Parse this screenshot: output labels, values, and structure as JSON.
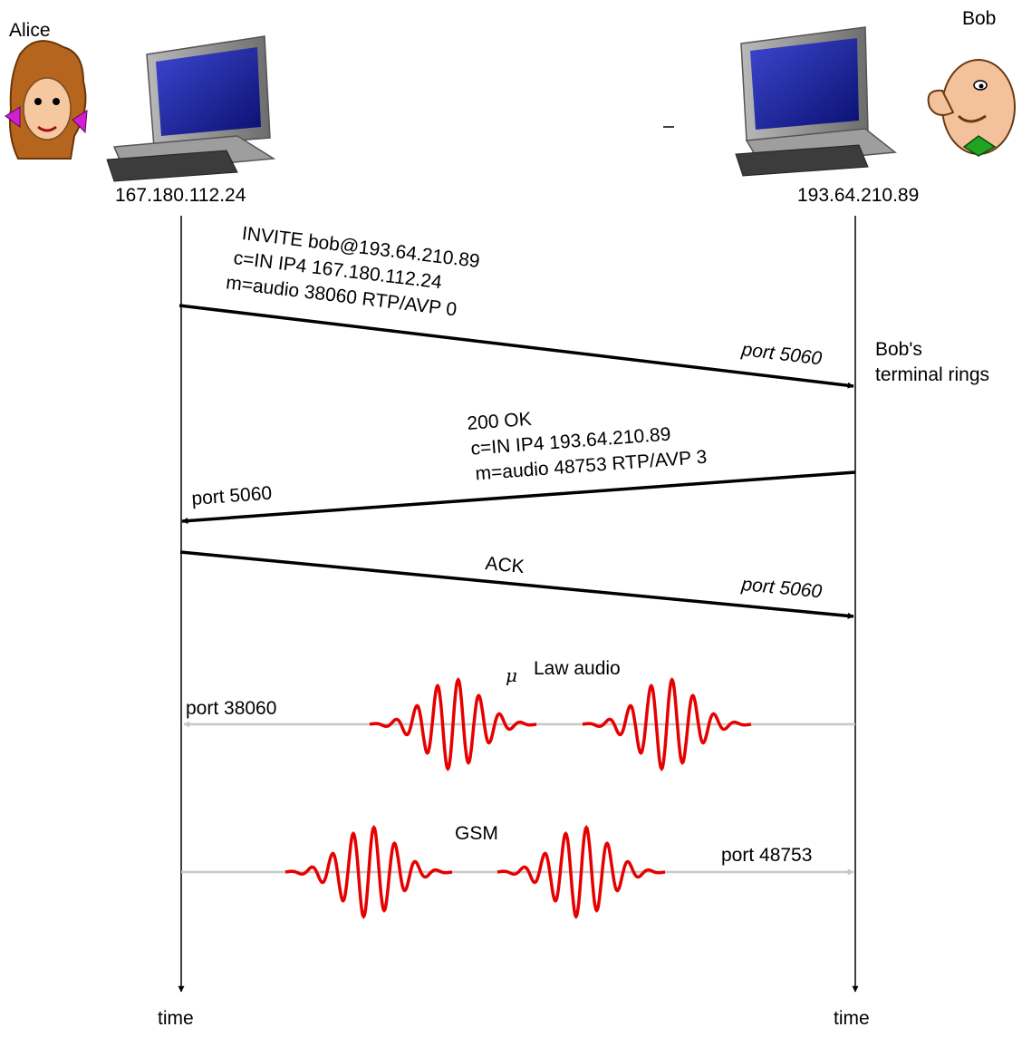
{
  "participants": {
    "alice": {
      "name": "Alice",
      "ip": "167.180.112.24",
      "timeline_label": "time"
    },
    "bob": {
      "name": "Bob",
      "ip": "193.64.210.89",
      "timeline_label": "time"
    }
  },
  "messages": {
    "invite": {
      "lines": [
        "INVITE bob@193.64.210.89",
        "c=IN IP4 167.180.112.24",
        "m=audio 38060 RTP/AVP 0"
      ],
      "port": "port 5060"
    },
    "ok": {
      "lines": [
        "200 OK",
        "c=IN IP4 193.64.210.89",
        "m=audio 48753 RTP/AVP 3"
      ],
      "port": "port 5060"
    },
    "ack": {
      "label": "ACK",
      "port": "port 5060"
    }
  },
  "bob_event": [
    "Bob's",
    "terminal rings"
  ],
  "streams": {
    "mulaw": {
      "mu": "μ",
      "label": "Law audio",
      "port": "port 38060"
    },
    "gsm": {
      "label": "GSM",
      "port": "port 48753"
    }
  },
  "colors": {
    "arrow": "#000000",
    "stream_line": "#c8c8c8",
    "waveform": "#e00000",
    "monitor_frame": "#9a9a9a",
    "screen": "#1a23a0"
  }
}
